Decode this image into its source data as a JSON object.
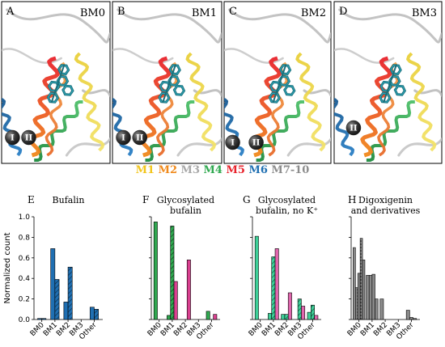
{
  "structure_panels": [
    {
      "letter": "A",
      "tag": "BM0",
      "ions": [
        "I",
        "II"
      ]
    },
    {
      "letter": "B",
      "tag": "BM1",
      "ions": [
        "I",
        "II"
      ]
    },
    {
      "letter": "C",
      "tag": "BM2",
      "ions": [
        "I",
        "II"
      ]
    },
    {
      "letter": "D",
      "tag": "BM3",
      "ions": [
        "II"
      ]
    }
  ],
  "legend": [
    {
      "label": "M1",
      "color": "#f2c51b"
    },
    {
      "label": "M2",
      "color": "#f08a1c"
    },
    {
      "label": "M3",
      "color": "#a8a8a8"
    },
    {
      "label": "M4",
      "color": "#2fa84f"
    },
    {
      "label": "M5",
      "color": "#e8232c"
    },
    {
      "label": "M6",
      "color": "#1f6fb2"
    },
    {
      "label": "M7-10",
      "color": "#8c8c8c"
    }
  ],
  "chart_data": [
    {
      "type": "bar",
      "letter": "E",
      "title": "Bufalin",
      "ylabel": "Normalized count",
      "ylim": [
        0,
        1.0
      ],
      "yticks": [
        "0.0",
        "0.2",
        "0.4",
        "0.6",
        "0.8",
        "1.0"
      ],
      "categories": [
        "BM0",
        "BM1",
        "BM2",
        "BM3",
        "Other"
      ],
      "color": "#1f6fb2",
      "series": [
        {
          "hatch": "none",
          "values": [
            0.01,
            0.69,
            0.17,
            0.0,
            0.12
          ]
        },
        {
          "hatch": "diagonal",
          "values": [
            0.01,
            0.39,
            0.51,
            0.0,
            0.1
          ]
        }
      ]
    },
    {
      "type": "bar",
      "letter": "F",
      "title_lines": [
        "Glycosylated",
        "bufalin"
      ],
      "ylim": [
        0,
        1.0
      ],
      "categories": [
        "BM0",
        "BM1",
        "BM2",
        "BM3",
        "Other"
      ],
      "series": [
        {
          "hatch": "none",
          "color": "#2fa84f",
          "values": [
            0.95,
            0.04,
            0.0,
            0.0,
            0.08
          ]
        },
        {
          "hatch": "diagonal",
          "color": "#2fa84f",
          "values": [
            0.0,
            0.91,
            0.0,
            0.0,
            0.0
          ]
        },
        {
          "hatch": "none",
          "color": "#d9408f",
          "values": [
            0.0,
            0.37,
            0.58,
            0.0,
            0.05
          ]
        }
      ]
    },
    {
      "type": "bar",
      "letter": "G",
      "title_lines": [
        "Glycosylated",
        "bufalin, no K⁺"
      ],
      "ylim": [
        0,
        1.0
      ],
      "categories": [
        "BM0",
        "BM1",
        "BM2",
        "BM3",
        "Other"
      ],
      "series": [
        {
          "hatch": "none",
          "color": "#3ecf98",
          "values": [
            0.81,
            0.06,
            0.05,
            0.0,
            0.07
          ]
        },
        {
          "hatch": "diagonal",
          "color": "#3ecf98",
          "values": [
            0.0,
            0.61,
            0.05,
            0.2,
            0.14
          ]
        },
        {
          "hatch": "none",
          "color": "#e066ad",
          "values": [
            0.0,
            0.69,
            0.26,
            0.13,
            0.04
          ]
        }
      ]
    },
    {
      "type": "bar",
      "letter": "H",
      "title_lines": [
        "Digoxigenin",
        "and derivatives"
      ],
      "ylim": [
        0,
        1.0
      ],
      "categories": [
        "BM0",
        "BM1",
        "BM2",
        "BM3",
        "Other"
      ],
      "color": "#8a8a8a",
      "bar_values": [
        {
          "category": "BM0",
          "values": [
            0.7,
            0.31,
            0.45,
            0.79,
            0.58
          ]
        },
        {
          "category": "BM1",
          "values": [
            0.43,
            0.43,
            0.44,
            0.2
          ]
        },
        {
          "category": "BM2",
          "values": [
            0.2,
            0.0,
            0.0
          ]
        },
        {
          "category": "BM3",
          "values": [
            0.0
          ]
        },
        {
          "category": "Other",
          "values": [
            0.09,
            0.02,
            0.01
          ]
        }
      ]
    }
  ]
}
